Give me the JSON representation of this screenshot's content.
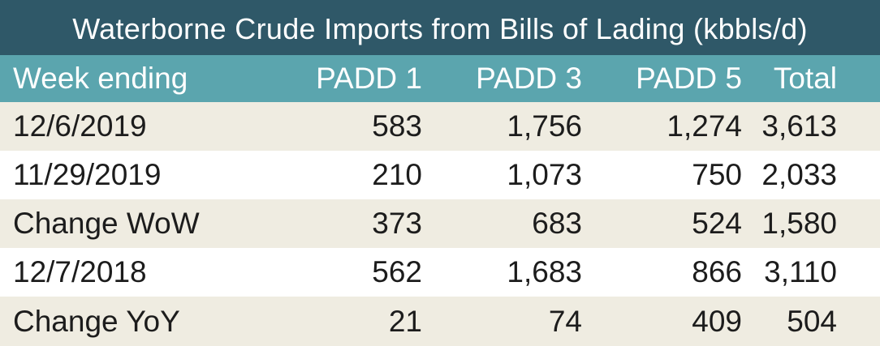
{
  "title": "Waterborne Crude Imports from Bills of Lading (kbbls/d)",
  "columns": [
    "Week ending",
    "PADD 1",
    "PADD 3",
    "PADD 5",
    "Total"
  ],
  "rows": [
    [
      "12/6/2019",
      "583",
      "1,756",
      "1,274",
      "3,613"
    ],
    [
      "11/29/2019",
      "210",
      "1,073",
      "750",
      "2,033"
    ],
    [
      "Change WoW",
      "373",
      "683",
      "524",
      "1,580"
    ],
    [
      "12/7/2018",
      "562",
      "1,683",
      "866",
      "3,110"
    ],
    [
      "Change YoY",
      "21",
      "74",
      "409",
      "504"
    ]
  ],
  "colors": {
    "title_bg": "#2f5868",
    "header_bg": "#5ba5ae",
    "shaded_row_bg": "#efece1",
    "text": "#1c1c1c"
  }
}
